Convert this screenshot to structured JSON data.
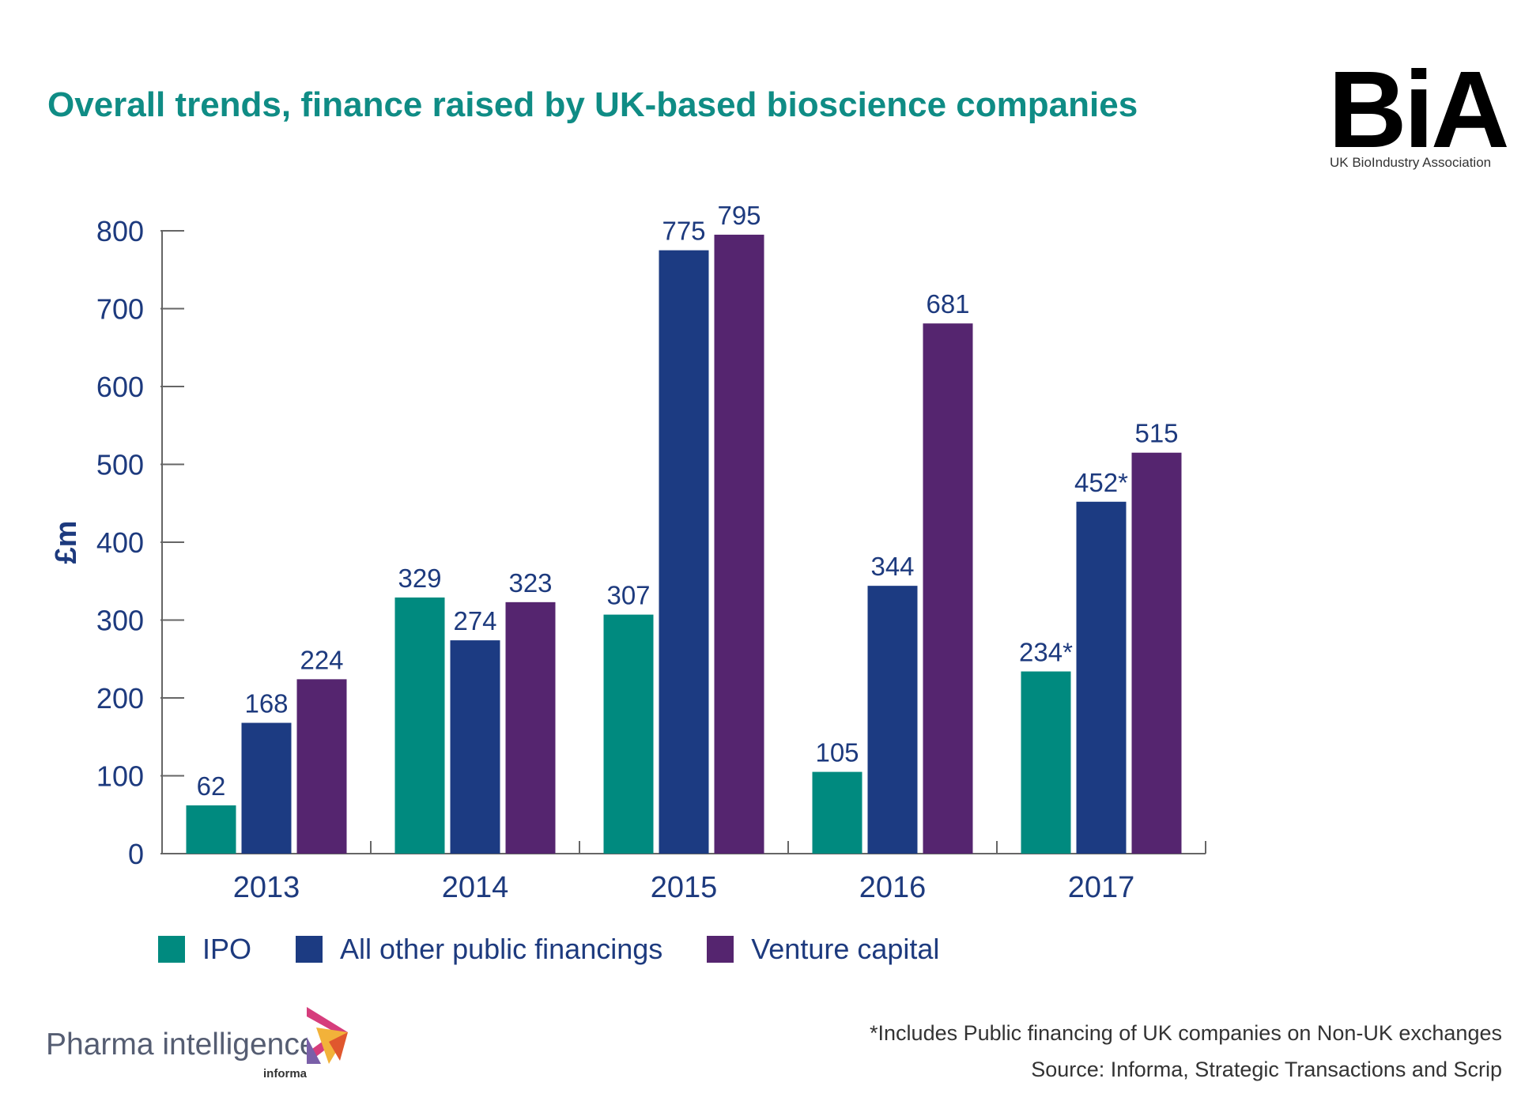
{
  "header": {
    "title": "Overall trends, finance raised by UK-based bioscience companies"
  },
  "logo": {
    "letters": "BiA",
    "subtitle": "UK BioIndustry Association"
  },
  "chart_data": {
    "type": "bar",
    "title": "Overall trends, finance raised by UK-based bioscience companies",
    "xlabel": "",
    "ylabel": "£m",
    "ylim": [
      0,
      800
    ],
    "yticks": [
      0,
      100,
      200,
      300,
      400,
      500,
      600,
      700,
      800
    ],
    "categories": [
      "2013",
      "2014",
      "2015",
      "2016",
      "2017"
    ],
    "series": [
      {
        "name": "IPO",
        "color": "#008a7f",
        "values": [
          62,
          329,
          307,
          105,
          234
        ],
        "labels": [
          "62",
          "329",
          "307",
          "105",
          "234*"
        ]
      },
      {
        "name": "All other public financings",
        "color": "#1c3b82",
        "values": [
          168,
          274,
          775,
          344,
          452
        ],
        "labels": [
          "168",
          "274",
          "775",
          "344",
          "452*"
        ]
      },
      {
        "name": "Venture capital",
        "color": "#55256f",
        "values": [
          224,
          323,
          795,
          681,
          515
        ],
        "labels": [
          "224",
          "323",
          "795",
          "681",
          "515"
        ]
      }
    ],
    "legend_position": "bottom-left",
    "grid": false
  },
  "footer": {
    "footnote": "*Includes Public financing of UK companies on Non-UK exchanges",
    "source": "Source: Informa, Strategic Transactions and Scrip",
    "brand": "Pharma intelligence",
    "brand_sub": "informa"
  }
}
